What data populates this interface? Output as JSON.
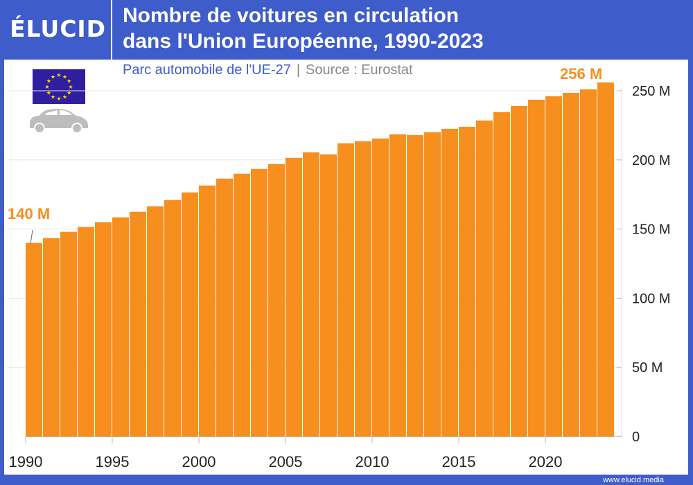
{
  "header": {
    "logo": "ÉLUCID",
    "title_line1": "Nombre de voitures en circulation",
    "title_line2": "dans l'Union Européenne, 1990-2023"
  },
  "subtitle": {
    "text": "Parc automobile de l'UE-27",
    "separator": "|",
    "source": "Source : Eurostat"
  },
  "footer": {
    "url": "www.elucid.media"
  },
  "icons": [
    "eu-flag-icon",
    "car-icon"
  ],
  "colors": {
    "frame": "#3f5ccb",
    "bar": "#f78f1e",
    "car": "#bdbdbd",
    "flag": "#2f1f9e"
  },
  "chart_data": {
    "type": "bar",
    "title": "Nombre de voitures en circulation dans l'Union Européenne, 1990-2023",
    "categories": [
      1990,
      1991,
      1992,
      1993,
      1994,
      1995,
      1996,
      1997,
      1998,
      1999,
      2000,
      2001,
      2002,
      2003,
      2004,
      2005,
      2006,
      2007,
      2008,
      2009,
      2010,
      2011,
      2012,
      2013,
      2014,
      2015,
      2016,
      2017,
      2018,
      2019,
      2020,
      2021,
      2022,
      2023
    ],
    "values": [
      140,
      143.5,
      148,
      151.5,
      155,
      158.5,
      162.5,
      166.5,
      171,
      176.5,
      181.5,
      186.5,
      190,
      193.5,
      197,
      201.5,
      205.5,
      204,
      212,
      213.5,
      215.5,
      218.5,
      218,
      220,
      222.5,
      224,
      228.5,
      234.5,
      239,
      243.5,
      246,
      248.5,
      251,
      256
    ],
    "unit": "M",
    "ylim": [
      0,
      250
    ],
    "yticks": [
      0,
      50,
      100,
      150,
      200,
      250
    ],
    "ytick_labels": [
      "0",
      "50 M",
      "100 M",
      "150 M",
      "200 M",
      "250 M"
    ],
    "xticks": [
      "1990",
      "1995",
      "2000",
      "2005",
      "2010",
      "2015",
      "2020"
    ],
    "grid": true,
    "y_axis_side": "right",
    "annotations": [
      {
        "year": 1990,
        "label": "140 M"
      },
      {
        "year": 2023,
        "label": "256 M"
      }
    ]
  }
}
